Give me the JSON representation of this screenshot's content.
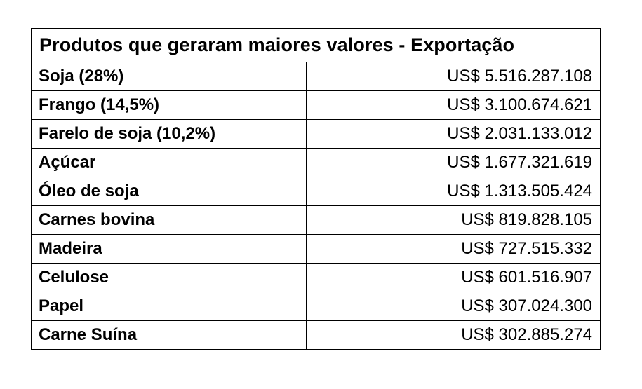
{
  "table": {
    "title": "Produtos que geraram maiores valores - Exportação",
    "rows": [
      {
        "product": "Soja (28%)",
        "value": "US$ 5.516.287.108"
      },
      {
        "product": "Frango (14,5%)",
        "value": "US$ 3.100.674.621"
      },
      {
        "product": "Farelo de soja (10,2%)",
        "value": "US$ 2.031.133.012"
      },
      {
        "product": "Açúcar",
        "value": "US$ 1.677.321.619"
      },
      {
        "product": "Óleo de soja",
        "value": "US$ 1.313.505.424"
      },
      {
        "product": "Carnes bovina",
        "value": "US$ 819.828.105"
      },
      {
        "product": "Madeira",
        "value": "US$ 727.515.332"
      },
      {
        "product": "Celulose",
        "value": "US$ 601.516.907"
      },
      {
        "product": "Papel",
        "value": "US$ 307.024.300"
      },
      {
        "product": "Carne Suína",
        "value": "US$ 302.885.274"
      }
    ]
  }
}
